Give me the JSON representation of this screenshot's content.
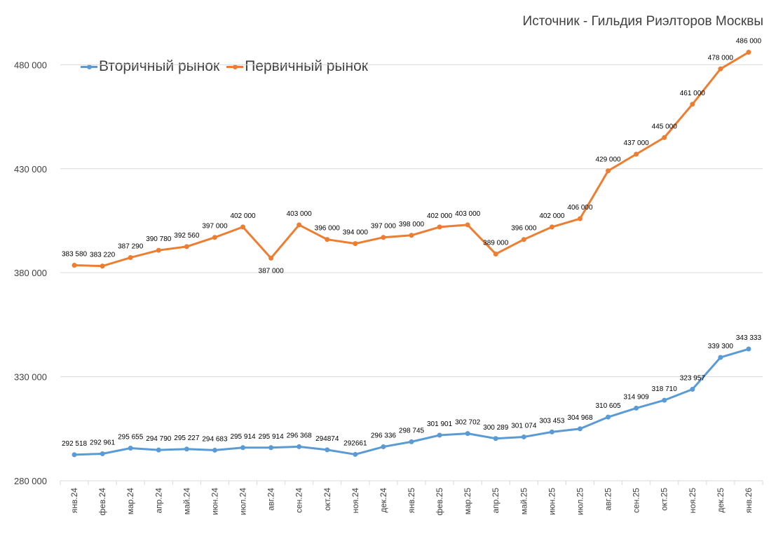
{
  "source_note": "Источник - Гильдия Риэлторов Москвы",
  "colors": {
    "secondary": "#5B9BD5",
    "primary": "#ED7D31",
    "grid": "#D9D9D9",
    "text": "#404040"
  },
  "chart_data": {
    "type": "line",
    "categories": [
      "янв.24",
      "фев.24",
      "мар.24",
      "апр.24",
      "май.24",
      "июн.24",
      "июл.24",
      "авг.24",
      "сен.24",
      "окт.24",
      "ноя.24",
      "дек.24",
      "янв.25",
      "фев.25",
      "мар.25",
      "апр.25",
      "май.25",
      "июн.25",
      "июл.25",
      "авг.25",
      "сен.25",
      "окт.25",
      "ноя.25",
      "дек.25",
      "янв.26"
    ],
    "series": [
      {
        "name": "Вторичный рынок",
        "values": [
          292518,
          292961,
          295655,
          294790,
          295227,
          294683,
          295914,
          295914,
          296368,
          294874,
          292661,
          296336,
          298745,
          301901,
          302702,
          300289,
          301074,
          303453,
          304968,
          310605,
          314909,
          318710,
          323957,
          339300,
          343333
        ],
        "labels": [
          "292 518",
          "292 961",
          "295 655",
          "294 790",
          "295 227",
          "294 683",
          "295 914",
          "295 914",
          "296 368",
          "294874",
          "292661",
          "296 336",
          "298 745",
          "301 901",
          "302 702",
          "300 289",
          "301 074",
          "303 453",
          "304 968",
          "310 605",
          "314 909",
          "318 710",
          "323 957",
          "339 300",
          "343 333"
        ]
      },
      {
        "name": "Первичный рынок",
        "values": [
          383580,
          383220,
          387290,
          390780,
          392560,
          397000,
          402000,
          387000,
          403000,
          396000,
          394000,
          397000,
          398000,
          402000,
          403000,
          389000,
          396000,
          402000,
          406000,
          429000,
          437000,
          445000,
          461000,
          478000,
          486000
        ],
        "labels": [
          "383 580",
          "383 220",
          "387 290",
          "390 780",
          "392 560",
          "397 000",
          "402 000",
          "387 000",
          "403 000",
          "396 000",
          "394 000",
          "397 000",
          "398 000",
          "402 000",
          "403 000",
          "389 000",
          "396 000",
          "402 000",
          "406 000",
          "429 000",
          "437 000",
          "445 000",
          "461 000",
          "478 000",
          "486 000"
        ]
      }
    ],
    "yticks": [
      280000,
      330000,
      380000,
      430000,
      480000
    ],
    "ytick_labels": [
      "280 000",
      "330 000",
      "380 000",
      "430 000",
      "480 000"
    ],
    "ylim": [
      280000,
      500000
    ],
    "grid": true,
    "legend": "top-left"
  }
}
